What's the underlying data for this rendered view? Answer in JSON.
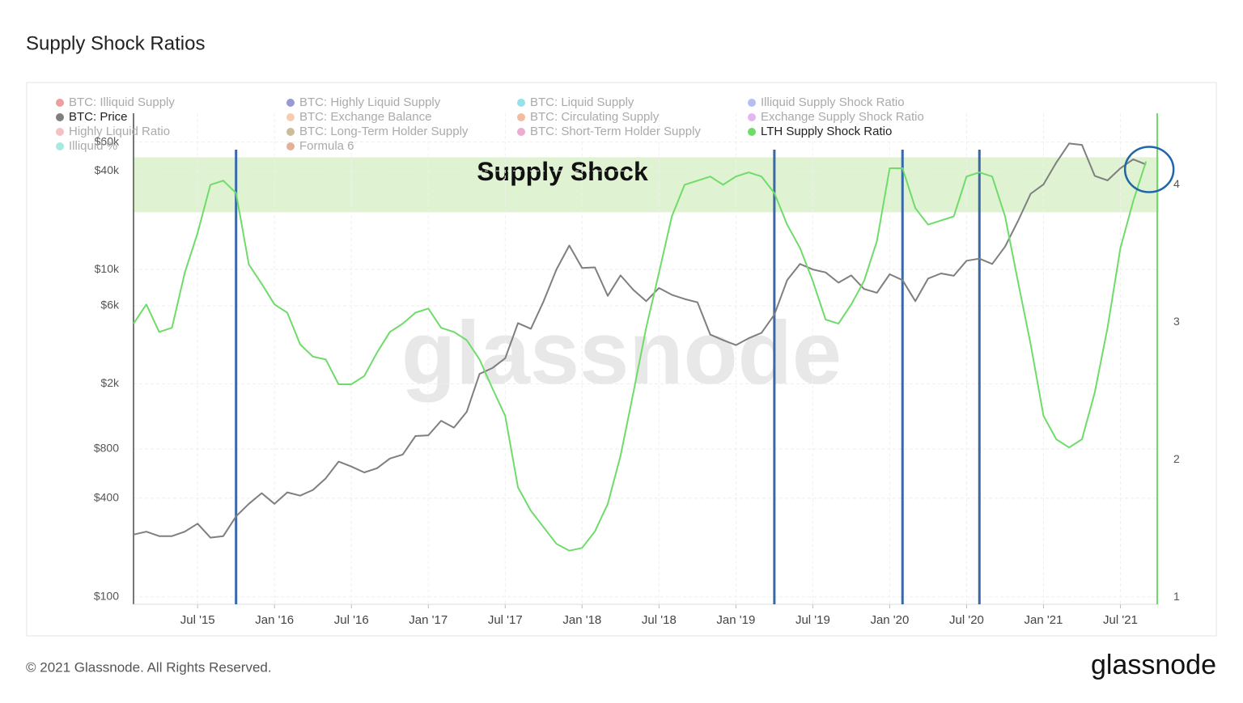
{
  "chart_data": {
    "type": "line",
    "title": "Supply Shock Ratios",
    "x": [
      "2015-02",
      "2015-03",
      "2015-04",
      "2015-05",
      "2015-06",
      "2015-07",
      "2015-08",
      "2015-09",
      "2015-10",
      "2015-11",
      "2015-12",
      "2016-01",
      "2016-02",
      "2016-03",
      "2016-04",
      "2016-05",
      "2016-06",
      "2016-07",
      "2016-08",
      "2016-09",
      "2016-10",
      "2016-11",
      "2016-12",
      "2017-01",
      "2017-02",
      "2017-03",
      "2017-04",
      "2017-05",
      "2017-06",
      "2017-07",
      "2017-08",
      "2017-09",
      "2017-10",
      "2017-11",
      "2017-12",
      "2018-01",
      "2018-02",
      "2018-03",
      "2018-04",
      "2018-05",
      "2018-06",
      "2018-07",
      "2018-08",
      "2018-09",
      "2018-10",
      "2018-11",
      "2018-12",
      "2019-01",
      "2019-02",
      "2019-03",
      "2019-04",
      "2019-05",
      "2019-06",
      "2019-07",
      "2019-08",
      "2019-09",
      "2019-10",
      "2019-11",
      "2019-12",
      "2020-01",
      "2020-02",
      "2020-03",
      "2020-04",
      "2020-05",
      "2020-06",
      "2020-07",
      "2020-08",
      "2020-09",
      "2020-10",
      "2020-11",
      "2020-12",
      "2021-01",
      "2021-02",
      "2021-03",
      "2021-04",
      "2021-05",
      "2021-06",
      "2021-07",
      "2021-08",
      "2021-09"
    ],
    "xlim": [
      "2015-02",
      "2021-10"
    ],
    "xticks": [
      {
        "value": "2015-07",
        "label": "Jul '15"
      },
      {
        "value": "2016-01",
        "label": "Jan '16"
      },
      {
        "value": "2016-07",
        "label": "Jul '16"
      },
      {
        "value": "2017-01",
        "label": "Jan '17"
      },
      {
        "value": "2017-07",
        "label": "Jul '17"
      },
      {
        "value": "2018-01",
        "label": "Jan '18"
      },
      {
        "value": "2018-07",
        "label": "Jul '18"
      },
      {
        "value": "2019-01",
        "label": "Jan '19"
      },
      {
        "value": "2019-07",
        "label": "Jul '19"
      },
      {
        "value": "2020-01",
        "label": "Jan '20"
      },
      {
        "value": "2020-07",
        "label": "Jul '20"
      },
      {
        "value": "2021-01",
        "label": "Jan '21"
      },
      {
        "value": "2021-07",
        "label": "Jul '21"
      }
    ],
    "ylim": [
      90,
      90000
    ],
    "log_y": true,
    "yticks": [
      {
        "value": 100,
        "label": "$100"
      },
      {
        "value": 400,
        "label": "$400"
      },
      {
        "value": 800,
        "label": "$800"
      },
      {
        "value": 2000,
        "label": "$2k"
      },
      {
        "value": 6000,
        "label": "$6k"
      },
      {
        "value": 10000,
        "label": "$10k"
      },
      {
        "value": 40000,
        "label": "$40k"
      },
      {
        "value": 60000,
        "label": "$60k"
      }
    ],
    "y2lim": [
      0.95,
      4.52
    ],
    "y2ticks": [
      1,
      2,
      3,
      4
    ],
    "grid": true,
    "series": [
      {
        "name": "BTC: Price",
        "color": "#7f7f7f",
        "values": [
          240,
          250,
          235,
          235,
          250,
          280,
          230,
          235,
          310,
          370,
          430,
          370,
          435,
          415,
          450,
          530,
          670,
          625,
          575,
          610,
          700,
          740,
          960,
          970,
          1190,
          1080,
          1350,
          2300,
          2500,
          2870,
          4700,
          4340,
          6400,
          10000,
          14000,
          10200,
          10300,
          6900,
          9200,
          7500,
          6400,
          7700,
          7000,
          6600,
          6300,
          4000,
          3700,
          3450,
          3800,
          4100,
          5300,
          8600,
          10800,
          10000,
          9600,
          8300,
          9200,
          7600,
          7200,
          9350,
          8600,
          6400,
          8800,
          9450,
          9150,
          11300,
          11650,
          10800,
          13800,
          19700,
          29000,
          33100,
          45000,
          58800,
          57700,
          37300,
          35000,
          41500,
          47100,
          43800
        ]
      },
      {
        "name": "LTH Supply Shock Ratio",
        "color": "#6fdc6a",
        "axis": "y2",
        "values": [
          2.99,
          3.13,
          2.93,
          2.96,
          3.36,
          3.65,
          4.0,
          4.03,
          3.94,
          3.42,
          3.28,
          3.13,
          3.07,
          2.84,
          2.75,
          2.73,
          2.55,
          2.55,
          2.61,
          2.78,
          2.93,
          2.99,
          3.07,
          3.1,
          2.96,
          2.93,
          2.87,
          2.73,
          2.52,
          2.32,
          1.8,
          1.63,
          1.51,
          1.39,
          1.34,
          1.36,
          1.48,
          1.68,
          2.03,
          2.49,
          2.96,
          3.36,
          3.77,
          4.0,
          4.03,
          4.06,
          4.0,
          4.06,
          4.09,
          4.06,
          3.94,
          3.71,
          3.54,
          3.3,
          3.02,
          2.99,
          3.13,
          3.3,
          3.59,
          4.12,
          4.12,
          3.83,
          3.71,
          3.74,
          3.77,
          4.06,
          4.09,
          4.06,
          3.77,
          3.3,
          2.84,
          2.32,
          2.15,
          2.09,
          2.15,
          2.49,
          2.96,
          3.54,
          3.88,
          4.17
        ]
      }
    ],
    "hidden_series": [
      {
        "name": "BTC: Illiquid Supply",
        "color": "#d62728"
      },
      {
        "name": "BTC: Highly Liquid Supply",
        "color": "#1a1aa0"
      },
      {
        "name": "BTC: Liquid Supply",
        "color": "#17becf"
      },
      {
        "name": "Illiquid Supply Shock Ratio",
        "color": "#5b6ee1"
      },
      {
        "name": "BTC: Exchange Balance",
        "color": "#f28e50"
      },
      {
        "name": "BTC: Circulating Supply",
        "color": "#e06a2c"
      },
      {
        "name": "Exchange Supply Shock Ratio",
        "color": "#c35be0"
      },
      {
        "name": "Highly Liquid Ratio",
        "color": "#e87878"
      },
      {
        "name": "BTC: Long-Term Holder Supply",
        "color": "#8c6d1f"
      },
      {
        "name": "BTC: Short-Term Holder Supply",
        "color": "#d4449a"
      },
      {
        "name": "Illiquid %",
        "color": "#3fcfb8"
      },
      {
        "name": "Formula 6",
        "color": "#c0501c"
      }
    ],
    "annotations": {
      "band": {
        "label": "Supply Shock",
        "y2range": [
          3.8,
          4.2
        ],
        "color": "#dff3d2"
      },
      "vlines": [
        "2015-10",
        "2019-04",
        "2020-02",
        "2020-08"
      ],
      "vline_color": "#3a68a8"
    },
    "watermark": "glassnode",
    "footer": "© 2021 Glassnode. All Rights Reserved.",
    "brand": "glassnode"
  }
}
